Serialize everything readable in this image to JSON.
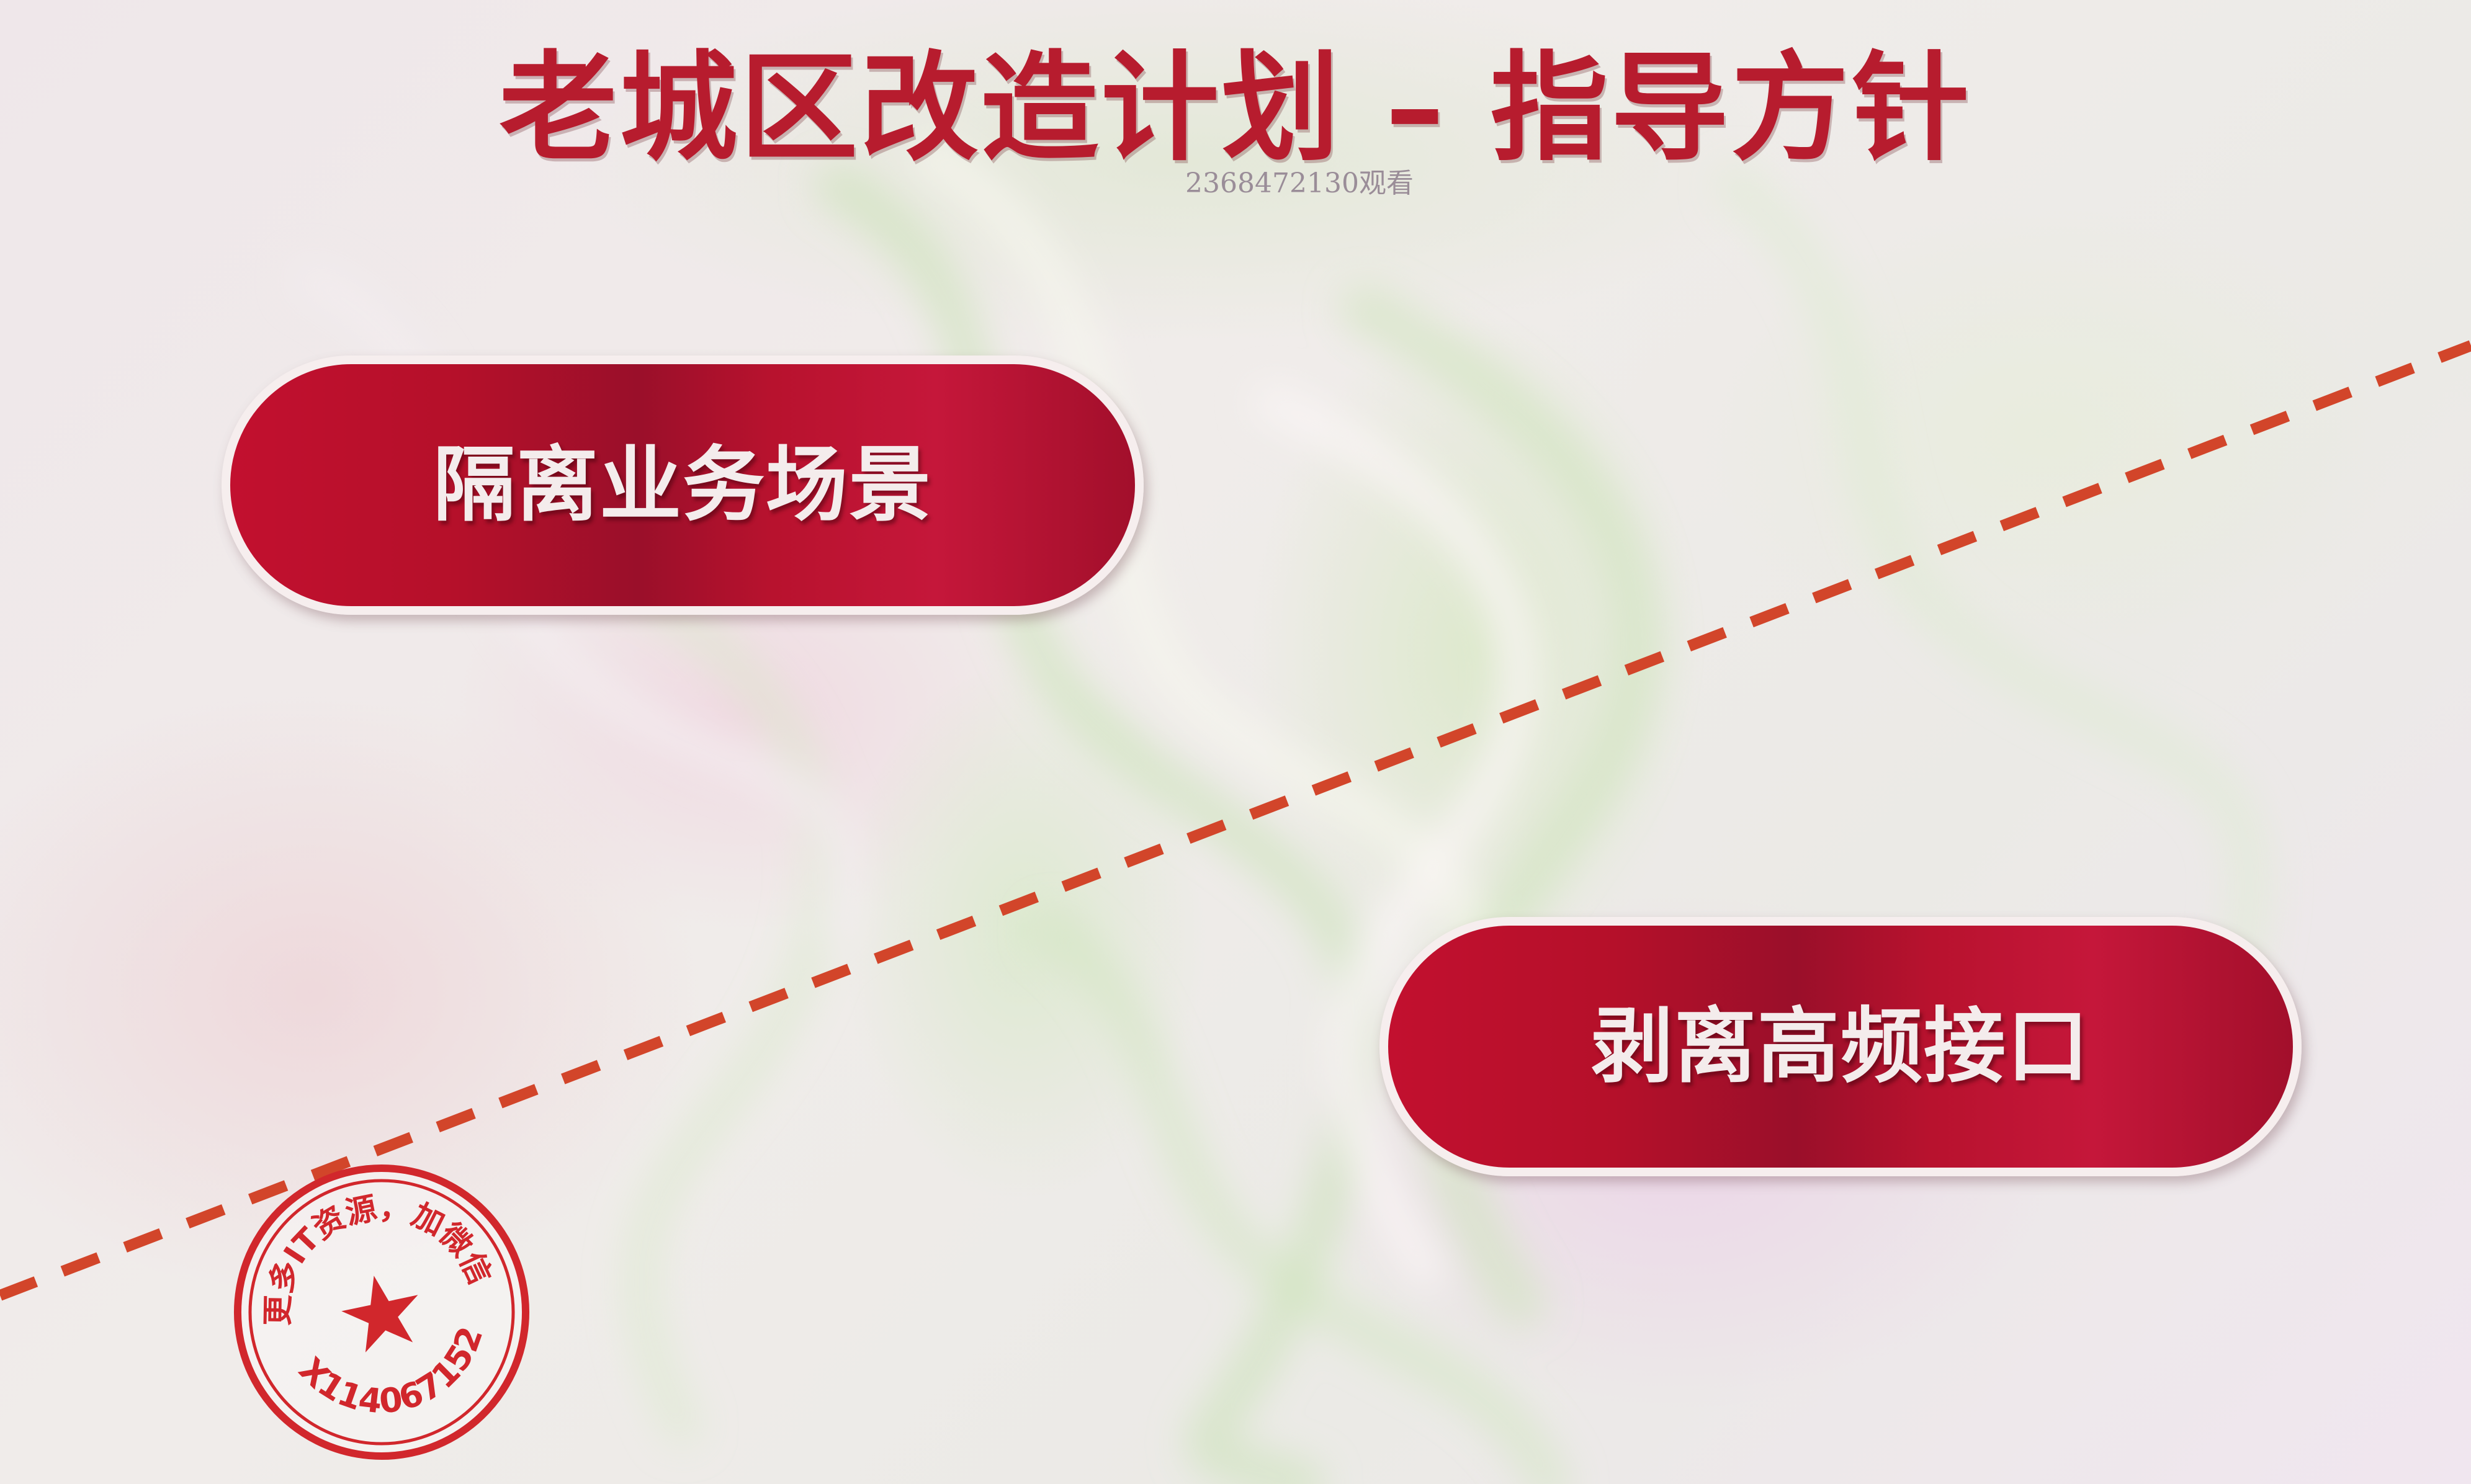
{
  "slide": {
    "title": "老城区改造计划 – 指导方针",
    "watermark_text": "2368472130观看",
    "pills": [
      {
        "label": "隔离业务场景"
      },
      {
        "label": "剥离高频接口"
      }
    ]
  },
  "stamp": {
    "ring_text": "更多IT资源，加微信",
    "contact_id": "X114067152",
    "icon": "star-icon"
  },
  "colors": {
    "title": "#b71c2e",
    "pill_fill": "#b5102a",
    "pill_text": "#f4ecec",
    "divider": "#d2452a",
    "stamp": "#d1272c"
  }
}
